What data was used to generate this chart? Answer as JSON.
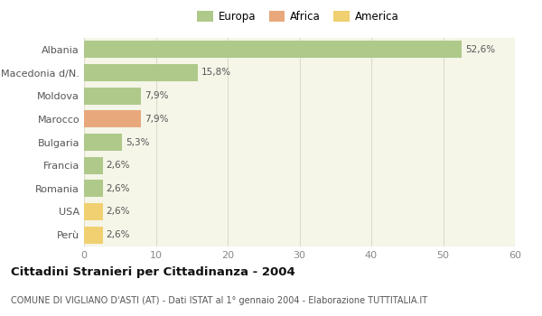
{
  "categories": [
    "Albania",
    "Macedonia d/N.",
    "Moldova",
    "Marocco",
    "Bulgaria",
    "Francia",
    "Romania",
    "USA",
    "Perù"
  ],
  "values": [
    52.6,
    15.8,
    7.9,
    7.9,
    5.3,
    2.6,
    2.6,
    2.6,
    2.6
  ],
  "labels": [
    "52,6%",
    "15,8%",
    "7,9%",
    "7,9%",
    "5,3%",
    "2,6%",
    "2,6%",
    "2,6%",
    "2,6%"
  ],
  "colors": [
    "#aec98a",
    "#aec98a",
    "#aec98a",
    "#e8a87c",
    "#aec98a",
    "#aec98a",
    "#aec98a",
    "#f0d070",
    "#f0d070"
  ],
  "legend_labels": [
    "Europa",
    "Africa",
    "America"
  ],
  "legend_colors": [
    "#aec98a",
    "#e8a87c",
    "#f0d070"
  ],
  "title": "Cittadini Stranieri per Cittadinanza - 2004",
  "subtitle": "COMUNE DI VIGLIANO D'ASTI (AT) - Dati ISTAT al 1° gennaio 2004 - Elaborazione TUTTITALIA.IT",
  "xlim": [
    0,
    60
  ],
  "xticks": [
    0,
    10,
    20,
    30,
    40,
    50,
    60
  ],
  "background_color": "#ffffff",
  "plot_bg_color": "#f5f5e8",
  "grid_color": "#ddddcc"
}
